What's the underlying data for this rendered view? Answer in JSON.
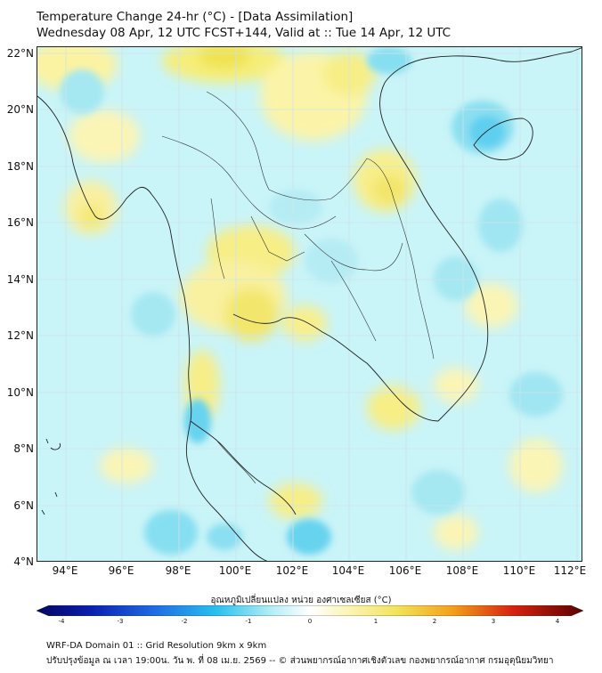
{
  "title": {
    "line1": "Temperature Change 24-hr (°C) - [Data Assimilation]",
    "line2": "Wednesday 08 Apr, 12 UTC FCST+144, Valid at :: Tue 14 Apr, 12 UTC"
  },
  "map": {
    "lat_labels": [
      "22°N",
      "20°N",
      "18°N",
      "16°N",
      "14°N",
      "12°N",
      "10°N",
      "8°N",
      "6°N",
      "4°N"
    ],
    "lon_labels": [
      "94°E",
      "96°E",
      "98°E",
      "100°E",
      "102°E",
      "104°E",
      "106°E",
      "108°E",
      "110°E",
      "112°E"
    ],
    "lat_range": [
      4,
      22
    ],
    "lon_range": [
      93,
      112.2
    ],
    "grid": true,
    "background_color": "#c8f3f7"
  },
  "colorbar": {
    "title": "อุณหภูมิเปลี่ยนแปลง หน่วย องศาเซลเซียส (°C)",
    "ticks": [
      "-4",
      "-3",
      "-2",
      "-1",
      "0",
      "1",
      "2",
      "3",
      "4"
    ],
    "range": [
      -4,
      4
    ]
  },
  "footer": {
    "line1": "WRF-DA Domain 01 :: Grid Resolution 9km x 9km",
    "line2": "ปรับปรุงข้อมูล ณ เวลา 19:00น. วัน พ. ที่ 08 เม.ย. 2569 -- © ส่วนพยากรณ์อากาศเชิงตัวเลข กองพยากรณ์อากาศ กรมอุตุนิยมวิทยา"
  }
}
